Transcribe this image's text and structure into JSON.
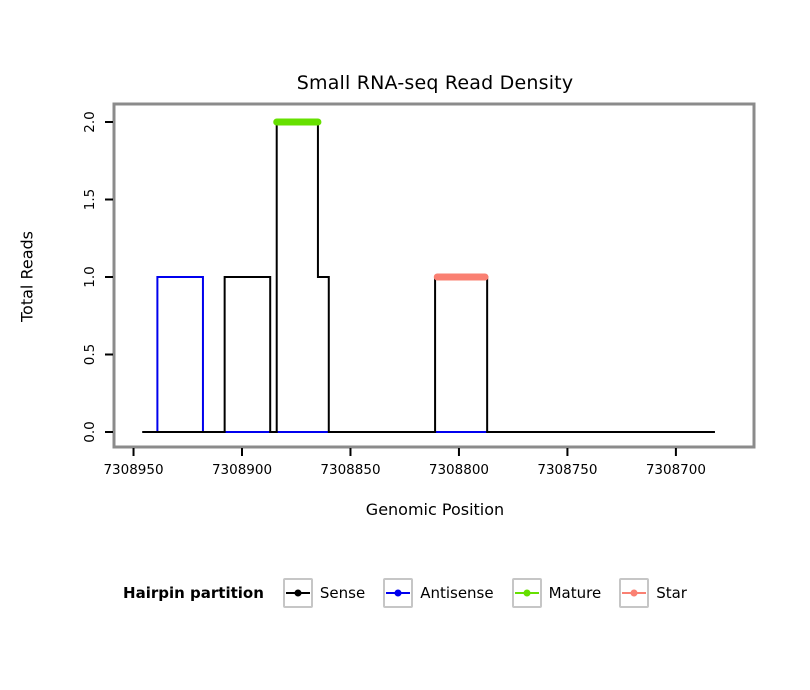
{
  "chart_data": {
    "type": "line",
    "title": "Small RNA-seq Read Density",
    "xlabel": "Genomic Position",
    "ylabel": "Total Reads",
    "x_axis_reversed": true,
    "x_ticks": [
      7308950,
      7308900,
      7308850,
      7308800,
      7308750,
      7308700
    ],
    "y_ticks": [
      0.0,
      0.5,
      1.0,
      1.5,
      2.0
    ],
    "x_range_left": 7308959,
    "x_range_right": 7308664,
    "ylim": [
      0,
      2.1
    ],
    "grid": false,
    "frame_color": "#8b8b8b",
    "series": [
      {
        "name": "Antisense",
        "color": "#0000ee",
        "type": "step",
        "segments": [
          {
            "start": 7308944,
            "end": 7308939,
            "reads": 0
          },
          {
            "start": 7308939,
            "end": 7308918,
            "reads": 1
          },
          {
            "start": 7308918,
            "end": 7308785,
            "reads": 0
          }
        ]
      },
      {
        "name": "Sense",
        "color": "#000000",
        "type": "step",
        "segments": [
          {
            "start": 7308946,
            "end": 7308908,
            "reads": 0
          },
          {
            "start": 7308908,
            "end": 7308887,
            "reads": 1
          },
          {
            "start": 7308887,
            "end": 7308884,
            "reads": 0
          },
          {
            "start": 7308884,
            "end": 7308865,
            "reads": 2
          },
          {
            "start": 7308865,
            "end": 7308860,
            "reads": 1
          },
          {
            "start": 7308860,
            "end": 7308811,
            "reads": 0
          },
          {
            "start": 7308811,
            "end": 7308787,
            "reads": 1
          },
          {
            "start": 7308787,
            "end": 7308682,
            "reads": 0
          }
        ]
      },
      {
        "name": "Mature",
        "color": "#66e000",
        "type": "interval",
        "reads": 2,
        "start": 7308884,
        "end": 7308865
      },
      {
        "name": "Star",
        "color": "#fa8072",
        "type": "interval",
        "reads": 1,
        "start": 7308810,
        "end": 7308788
      }
    ],
    "legend_position": "bottom"
  },
  "legend": {
    "title": "Hairpin partition",
    "items": [
      {
        "label": "Sense",
        "color": "#000000"
      },
      {
        "label": "Antisense",
        "color": "#0000ee"
      },
      {
        "label": "Mature",
        "color": "#66e000"
      },
      {
        "label": "Star",
        "color": "#fa8072"
      }
    ]
  }
}
